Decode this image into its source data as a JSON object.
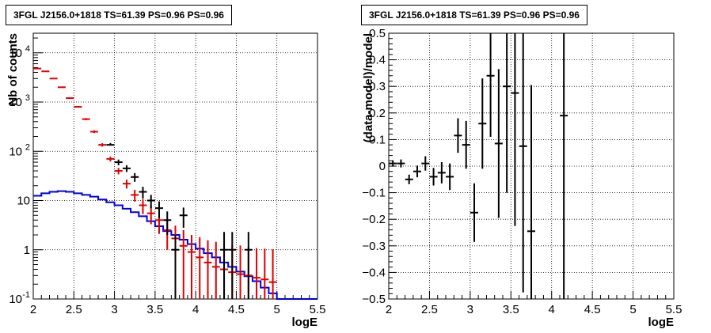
{
  "chart_data": [
    {
      "type": "histogram",
      "title": "3FGL J2156.0+1818 TS=61.39 PS=0.96 PS=0.96",
      "xlabel": "logE",
      "ylabel": "Nb of counts",
      "xlim": [
        2,
        5.5
      ],
      "ylim": [
        0.1,
        25000
      ],
      "yscale": "log",
      "grid": true,
      "x_ticks": [
        "2",
        "2.5",
        "3",
        "3.5",
        "4",
        "4.5",
        "5",
        "5.5"
      ],
      "y_ticks": [
        {
          "v": 0.1,
          "label": "10",
          "exp": "-1"
        },
        {
          "v": 1,
          "label": "1",
          "exp": ""
        },
        {
          "v": 10,
          "label": "10",
          "exp": ""
        },
        {
          "v": 100,
          "label": "10",
          "exp": "2"
        },
        {
          "v": 1000,
          "label": "10",
          "exp": "3"
        },
        {
          "v": 10000,
          "label": "10",
          "exp": "4"
        }
      ],
      "series": [
        {
          "color": "#000000",
          "style": "points",
          "x": [
            2.95,
            3.05,
            3.15,
            3.25,
            3.35,
            3.45,
            3.55,
            3.65,
            3.75,
            3.85,
            4.35,
            4.45,
            4.65
          ],
          "y": [
            135,
            60,
            45,
            30,
            15,
            10,
            7,
            4,
            1,
            5,
            1,
            1,
            1
          ],
          "err_low": [
            0.1,
            8,
            7,
            6,
            4,
            3,
            2.6,
            2,
            1,
            2.2,
            1,
            1,
            1
          ],
          "err_high": [
            12,
            8,
            7,
            6,
            4,
            3,
            2.6,
            2,
            1,
            2.2,
            1.3,
            1.3,
            1.3
          ]
        },
        {
          "color": "#dd0000",
          "style": "points",
          "x": [
            2.05,
            2.15,
            2.25,
            2.35,
            2.45,
            2.55,
            2.65,
            2.75,
            2.85,
            2.95,
            3.05,
            3.15,
            3.25,
            3.35,
            3.45,
            3.55,
            3.65,
            3.75,
            3.85,
            3.95,
            4.05,
            4.15,
            4.25,
            4.35,
            4.45,
            4.55,
            4.65,
            4.75,
            4.85,
            4.95
          ],
          "y": [
            4800,
            4200,
            3000,
            2000,
            1200,
            800,
            450,
            250,
            135,
            70,
            40,
            22,
            13,
            8,
            5.5,
            4,
            2.5,
            1.7,
            1.2,
            0.9,
            0.7,
            0.55,
            0.45,
            0.4,
            0.35,
            0.32,
            0.3,
            0.27,
            0.25,
            0.22
          ],
          "err_low": [
            70,
            65,
            55,
            45,
            35,
            28,
            21,
            16,
            11,
            8,
            6,
            4.5,
            3.5,
            2.7,
            2.2,
            1.9,
            1.5,
            1.3,
            1.1,
            0.8,
            0.6,
            0.45,
            0.35,
            0.3,
            0.25,
            0.22,
            0.2,
            0.17,
            0.15,
            0.12
          ],
          "err_high": [
            70,
            65,
            55,
            45,
            35,
            28,
            21,
            16,
            11,
            8,
            6,
            4.5,
            3.5,
            2.7,
            2.2,
            1.9,
            1.6,
            1.4,
            1.3,
            1.1,
            1.1,
            1.0,
            1.0,
            0.95,
            0.9,
            0.9,
            0.85,
            0.8,
            0.8,
            0.8
          ]
        },
        {
          "color": "#0000dd",
          "style": "step",
          "edges": [
            2.0,
            2.1,
            2.2,
            2.3,
            2.4,
            2.5,
            2.6,
            2.7,
            2.8,
            2.9,
            3.0,
            3.1,
            3.2,
            3.3,
            3.4,
            3.5,
            3.6,
            3.7,
            3.8,
            3.9,
            4.0,
            4.1,
            4.2,
            4.3,
            4.4,
            4.5,
            4.6,
            4.7,
            4.8,
            4.9,
            5.0,
            5.1,
            5.2,
            5.3,
            5.4,
            5.5
          ],
          "values": [
            12.5,
            14,
            15,
            15.5,
            15,
            14,
            13,
            12,
            10.5,
            9.2,
            8,
            6.8,
            5.8,
            4.8,
            3.8,
            3.0,
            2.4,
            2.0,
            1.6,
            1.3,
            1.05,
            0.85,
            0.7,
            0.55,
            0.45,
            0.36,
            0.29,
            0.23,
            0.17,
            0.13,
            0.1,
            0.1,
            0.1,
            0.1,
            0.1
          ]
        }
      ]
    },
    {
      "type": "scatter",
      "title": "3FGL J2156.0+1818 TS=61.39 PS=0.96 PS=0.96",
      "xlabel": "logE",
      "ylabel": "(data-model)/model",
      "xlim": [
        2,
        5.5
      ],
      "ylim": [
        -0.5,
        0.5
      ],
      "grid": true,
      "x_ticks": [
        "2",
        "2.5",
        "3",
        "3.5",
        "4",
        "4.5",
        "5",
        "5.5"
      ],
      "y_ticks": [
        "-0.5",
        "-0.4",
        "-0.3",
        "-0.2",
        "-0.1",
        "0",
        "0.1",
        "0.2",
        "0.3",
        "0.4",
        "0.5"
      ],
      "series": [
        {
          "color": "#000000",
          "x": [
            2.05,
            2.15,
            2.25,
            2.35,
            2.45,
            2.55,
            2.65,
            2.75,
            2.85,
            2.95,
            3.05,
            3.15,
            3.25,
            3.35,
            3.45,
            3.55,
            3.65,
            3.75,
            4.15
          ],
          "y": [
            0.01,
            0.01,
            -0.05,
            -0.02,
            0.01,
            -0.04,
            -0.025,
            -0.04,
            0.115,
            0.08,
            -0.175,
            0.16,
            0.34,
            0.085,
            0.3,
            0.275,
            0.075,
            -0.245,
            0.19
          ],
          "err": [
            0.012,
            0.015,
            0.018,
            0.022,
            0.027,
            0.033,
            0.04,
            0.05,
            0.065,
            0.09,
            0.11,
            0.17,
            0.23,
            0.28,
            0.4,
            0.5,
            0.55,
            0.55,
            0.9
          ]
        }
      ]
    }
  ]
}
